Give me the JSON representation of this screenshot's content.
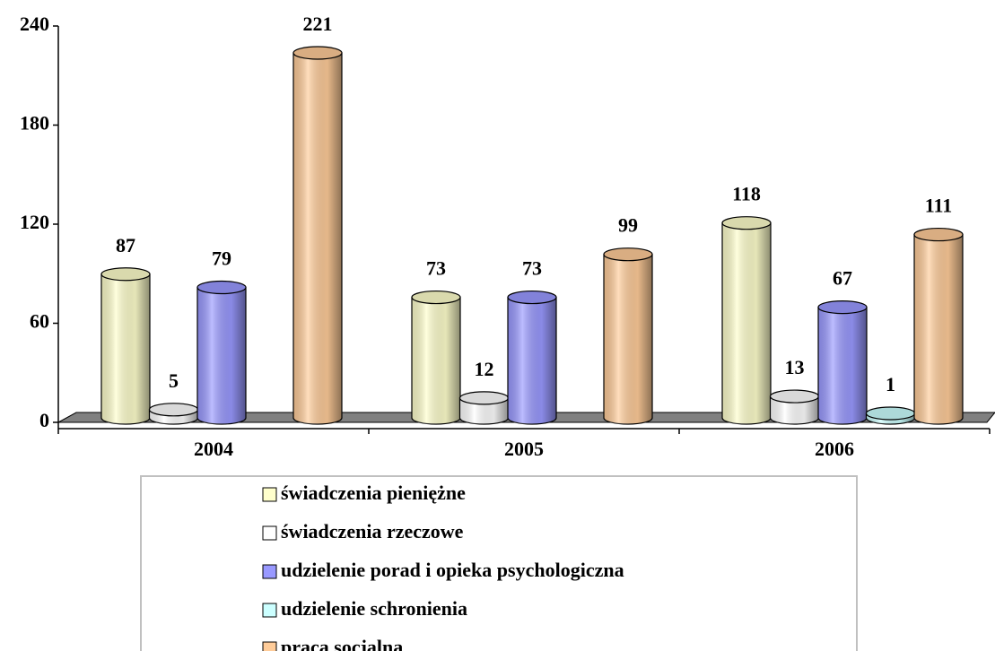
{
  "chart_data": {
    "type": "bar",
    "categories": [
      "2004",
      "2005",
      "2006"
    ],
    "series": [
      {
        "name": "świadczenia pieniężne",
        "color": "#ffffcc",
        "values": [
          87,
          73,
          118
        ]
      },
      {
        "name": "świadczenia rzeczowe",
        "color": "#ffffff",
        "values": [
          5,
          12,
          13
        ]
      },
      {
        "name": "udzielenie porad i opieka psychologiczna",
        "color": "#9999ff",
        "values": [
          79,
          73,
          67
        ]
      },
      {
        "name": "udzielenie schronienia",
        "color": "#ccffff",
        "values": [
          null,
          null,
          1
        ]
      },
      {
        "name": "praca socjalna",
        "color": "#ffcc99",
        "values": [
          221,
          99,
          111
        ]
      }
    ],
    "ylim": [
      0,
      240
    ],
    "yticks": [
      0,
      60,
      120,
      180,
      240
    ],
    "legend": "bottom"
  }
}
